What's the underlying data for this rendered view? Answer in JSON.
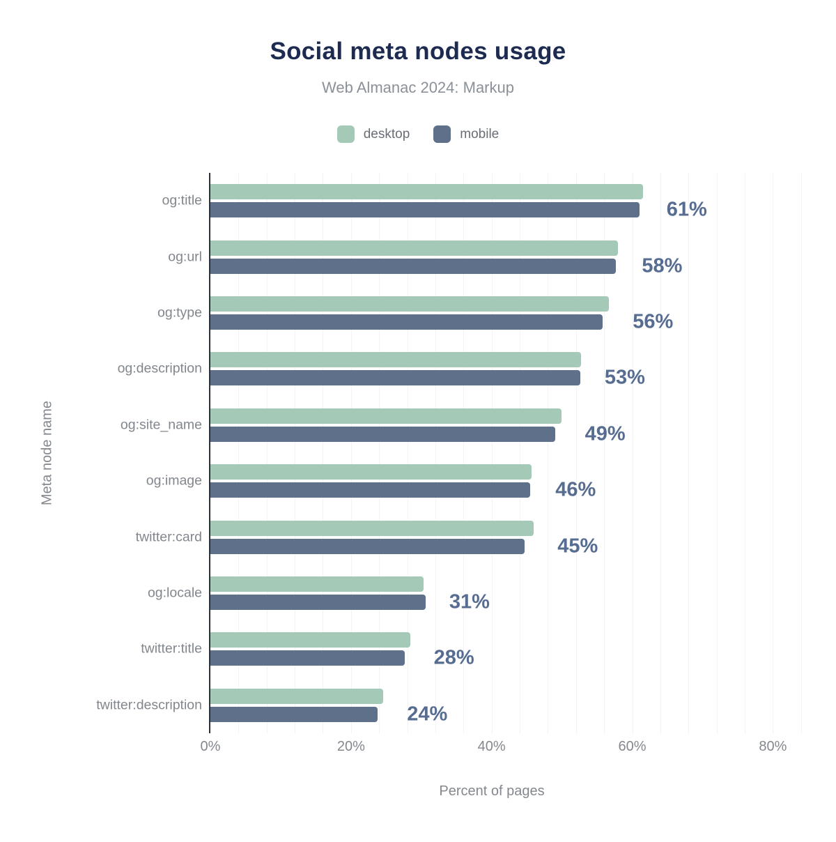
{
  "header": {
    "title": "Social meta nodes usage",
    "subtitle": "Web Almanac 2024: Markup"
  },
  "legend": [
    {
      "label": "desktop",
      "color": "#a4c9b7"
    },
    {
      "label": "mobile",
      "color": "#5f708a"
    }
  ],
  "axes": {
    "x_title": "Percent of pages",
    "y_title": "Meta node name",
    "x_ticks": [
      {
        "label": "0%",
        "value": 0
      },
      {
        "label": "20%",
        "value": 20
      },
      {
        "label": "40%",
        "value": 40
      },
      {
        "label": "60%",
        "value": 60
      },
      {
        "label": "80%",
        "value": 80
      }
    ]
  },
  "chart_data": {
    "type": "bar",
    "orientation": "horizontal",
    "title": "Social meta nodes usage",
    "subtitle": "Web Almanac 2024: Markup",
    "xlabel": "Percent of pages",
    "ylabel": "Meta node name",
    "xlim": [
      0,
      86
    ],
    "x_tick_step": 20,
    "minor_grid_step": 4,
    "grid": "vertical-minor",
    "legend_position": "top-center",
    "categories": [
      "og:title",
      "og:url",
      "og:type",
      "og:description",
      "og:site_name",
      "og:image",
      "twitter:card",
      "og:locale",
      "twitter:title",
      "twitter:description"
    ],
    "series": [
      {
        "name": "desktop",
        "color": "#a4c9b7",
        "values": [
          61.5,
          58.0,
          56.7,
          52.7,
          49.9,
          45.7,
          46.0,
          30.3,
          28.4,
          24.6
        ]
      },
      {
        "name": "mobile",
        "color": "#5f708a",
        "values": [
          61.0,
          57.7,
          55.8,
          52.6,
          49.0,
          45.5,
          44.7,
          30.6,
          27.6,
          23.8
        ]
      }
    ],
    "value_labels": [
      "61%",
      "58%",
      "56%",
      "53%",
      "49%",
      "46%",
      "45%",
      "31%",
      "28%",
      "24%"
    ],
    "value_label_color": "#566c91"
  },
  "style": {
    "title_color": "#1e2b50",
    "subtitle_color": "#8b9099",
    "axis_line_color": "#2c3037",
    "gridline_color": "#f3f3f5",
    "tick_label_color": "#84888e",
    "category_label_color": "#82878d"
  }
}
